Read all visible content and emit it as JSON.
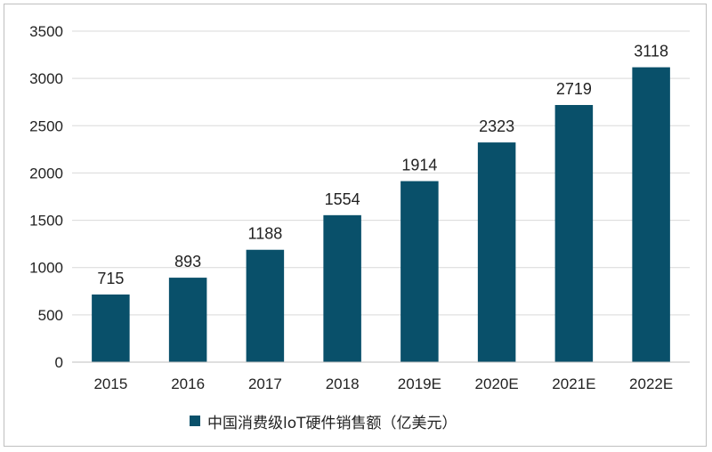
{
  "chart_data": {
    "type": "bar",
    "categories": [
      "2015",
      "2016",
      "2017",
      "2018",
      "2019E",
      "2020E",
      "2021E",
      "2022E"
    ],
    "series": [
      {
        "name": "中国消费级loT硬件销售额（亿美元）",
        "values": [
          715,
          893,
          1188,
          1554,
          1914,
          2323,
          2719,
          3118
        ]
      }
    ],
    "title": "",
    "xlabel": "",
    "ylabel": "",
    "ylim": [
      0,
      3500
    ],
    "yticks": [
      0,
      500,
      1000,
      1500,
      2000,
      2500,
      3000,
      3500
    ],
    "grid": true,
    "legend_position": "bottom",
    "bar_color": "#09506a"
  }
}
